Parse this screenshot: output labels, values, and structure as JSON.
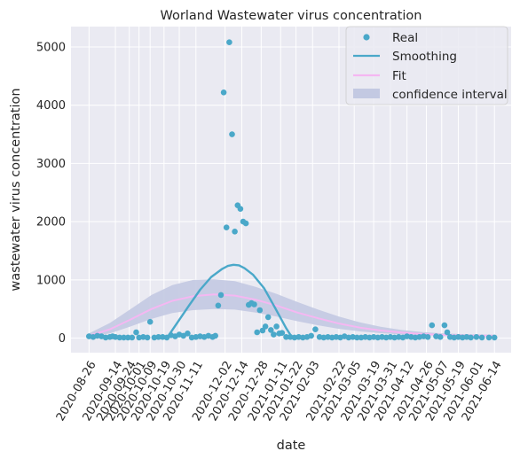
{
  "chart_data": {
    "type": "scatter",
    "title": "Worland Wastewater virus concentration",
    "xlabel": "date",
    "ylabel": "wastewater virus concentration",
    "xlim": [
      "2020-08-13",
      "2021-06-26"
    ],
    "ylim": [
      -250,
      5350
    ],
    "yticks": [
      0,
      1000,
      2000,
      3000,
      4000,
      5000
    ],
    "xticks": [
      "2020-08-26",
      "2020-09-14",
      "2020-09-24",
      "2020-10-01",
      "2020-10-09",
      "2020-10-19",
      "2020-10-30",
      "2020-11-11",
      "2020-12-02",
      "2020-12-14",
      "2020-12-28",
      "2021-01-11",
      "2021-01-22",
      "2021-02-03",
      "2021-02-22",
      "2021-03-05",
      "2021-03-19",
      "2021-03-31",
      "2021-04-12",
      "2021-04-26",
      "2021-05-07",
      "2021-05-19",
      "2021-06-01",
      "2021-06-14"
    ],
    "grid": true,
    "legend_position": "top-right",
    "colors": {
      "real": "#4aa8c9",
      "smoothing": "#4aa8c9",
      "fit": "#f5b7f2",
      "ci": "#c3c9e2",
      "plot_bg": "#eaeaf2",
      "grid": "#ffffff"
    },
    "series": [
      {
        "name": "Real",
        "kind": "scatter",
        "points": [
          [
            "2020-08-26",
            30
          ],
          [
            "2020-08-29",
            20
          ],
          [
            "2020-09-01",
            40
          ],
          [
            "2020-09-04",
            30
          ],
          [
            "2020-09-07",
            10
          ],
          [
            "2020-09-10",
            20
          ],
          [
            "2020-09-12",
            30
          ],
          [
            "2020-09-14",
            20
          ],
          [
            "2020-09-17",
            10
          ],
          [
            "2020-09-20",
            10
          ],
          [
            "2020-09-23",
            10
          ],
          [
            "2020-09-26",
            10
          ],
          [
            "2020-09-29",
            100
          ],
          [
            "2020-10-01",
            10
          ],
          [
            "2020-10-04",
            20
          ],
          [
            "2020-10-07",
            10
          ],
          [
            "2020-10-09",
            280
          ],
          [
            "2020-10-12",
            10
          ],
          [
            "2020-10-15",
            20
          ],
          [
            "2020-10-18",
            20
          ],
          [
            "2020-10-21",
            10
          ],
          [
            "2020-10-24",
            50
          ],
          [
            "2020-10-27",
            30
          ],
          [
            "2020-10-30",
            60
          ],
          [
            "2020-11-02",
            40
          ],
          [
            "2020-11-05",
            80
          ],
          [
            "2020-11-08",
            10
          ],
          [
            "2020-11-11",
            20
          ],
          [
            "2020-11-14",
            30
          ],
          [
            "2020-11-17",
            20
          ],
          [
            "2020-11-20",
            40
          ],
          [
            "2020-11-23",
            20
          ],
          [
            "2020-11-25",
            40
          ],
          [
            "2020-11-27",
            560
          ],
          [
            "2020-11-29",
            740
          ],
          [
            "2020-12-01",
            4220
          ],
          [
            "2020-12-03",
            1900
          ],
          [
            "2020-12-05",
            5080
          ],
          [
            "2020-12-07",
            3500
          ],
          [
            "2020-12-09",
            1830
          ],
          [
            "2020-12-11",
            2280
          ],
          [
            "2020-12-13",
            2220
          ],
          [
            "2020-12-15",
            2000
          ],
          [
            "2020-12-17",
            1970
          ],
          [
            "2020-12-19",
            570
          ],
          [
            "2020-12-21",
            600
          ],
          [
            "2020-12-23",
            580
          ],
          [
            "2020-12-25",
            100
          ],
          [
            "2020-12-27",
            480
          ],
          [
            "2020-12-29",
            130
          ],
          [
            "2020-12-31",
            200
          ],
          [
            "2021-01-02",
            360
          ],
          [
            "2021-01-04",
            140
          ],
          [
            "2021-01-06",
            60
          ],
          [
            "2021-01-08",
            200
          ],
          [
            "2021-01-10",
            80
          ],
          [
            "2021-01-12",
            90
          ],
          [
            "2021-01-15",
            20
          ],
          [
            "2021-01-18",
            20
          ],
          [
            "2021-01-21",
            10
          ],
          [
            "2021-01-24",
            20
          ],
          [
            "2021-01-27",
            10
          ],
          [
            "2021-01-30",
            20
          ],
          [
            "2021-02-02",
            40
          ],
          [
            "2021-02-05",
            150
          ],
          [
            "2021-02-08",
            20
          ],
          [
            "2021-02-11",
            10
          ],
          [
            "2021-02-14",
            20
          ],
          [
            "2021-02-17",
            10
          ],
          [
            "2021-02-20",
            20
          ],
          [
            "2021-02-23",
            10
          ],
          [
            "2021-02-26",
            30
          ],
          [
            "2021-03-01",
            10
          ],
          [
            "2021-03-04",
            20
          ],
          [
            "2021-03-07",
            10
          ],
          [
            "2021-03-10",
            10
          ],
          [
            "2021-03-13",
            20
          ],
          [
            "2021-03-16",
            10
          ],
          [
            "2021-03-19",
            20
          ],
          [
            "2021-03-22",
            10
          ],
          [
            "2021-03-25",
            20
          ],
          [
            "2021-03-28",
            10
          ],
          [
            "2021-03-31",
            20
          ],
          [
            "2021-04-03",
            10
          ],
          [
            "2021-04-06",
            20
          ],
          [
            "2021-04-09",
            10
          ],
          [
            "2021-04-12",
            30
          ],
          [
            "2021-04-15",
            20
          ],
          [
            "2021-04-18",
            10
          ],
          [
            "2021-04-21",
            20
          ],
          [
            "2021-04-24",
            30
          ],
          [
            "2021-04-27",
            20
          ],
          [
            "2021-04-30",
            220
          ],
          [
            "2021-05-03",
            30
          ],
          [
            "2021-05-06",
            20
          ],
          [
            "2021-05-09",
            220
          ],
          [
            "2021-05-11",
            100
          ],
          [
            "2021-05-13",
            20
          ],
          [
            "2021-05-16",
            10
          ],
          [
            "2021-05-19",
            20
          ],
          [
            "2021-05-22",
            10
          ],
          [
            "2021-05-25",
            20
          ],
          [
            "2021-05-28",
            10
          ],
          [
            "2021-06-01",
            20
          ],
          [
            "2021-06-05",
            10
          ],
          [
            "2021-06-10",
            10
          ],
          [
            "2021-06-14",
            10
          ]
        ]
      },
      {
        "name": "Smoothing",
        "kind": "line",
        "points": [
          [
            "2020-10-21",
            0
          ],
          [
            "2020-10-29",
            280
          ],
          [
            "2020-11-06",
            560
          ],
          [
            "2020-11-14",
            830
          ],
          [
            "2020-11-22",
            1050
          ],
          [
            "2020-11-30",
            1190
          ],
          [
            "2020-12-04",
            1240
          ],
          [
            "2020-12-08",
            1260
          ],
          [
            "2020-12-12",
            1250
          ],
          [
            "2020-12-16",
            1200
          ],
          [
            "2020-12-22",
            1090
          ],
          [
            "2020-12-30",
            860
          ],
          [
            "2021-01-07",
            520
          ],
          [
            "2021-01-15",
            170
          ],
          [
            "2021-01-19",
            20
          ],
          [
            "2021-01-22",
            0
          ]
        ]
      },
      {
        "name": "Fit",
        "kind": "line",
        "points": [
          [
            "2020-08-26",
            40
          ],
          [
            "2020-09-10",
            150
          ],
          [
            "2020-09-25",
            320
          ],
          [
            "2020-10-10",
            500
          ],
          [
            "2020-10-25",
            640
          ],
          [
            "2020-11-09",
            720
          ],
          [
            "2020-11-24",
            750
          ],
          [
            "2020-12-09",
            730
          ],
          [
            "2020-12-24",
            660
          ],
          [
            "2021-01-08",
            560
          ],
          [
            "2021-01-23",
            440
          ],
          [
            "2021-02-07",
            340
          ],
          [
            "2021-02-22",
            250
          ],
          [
            "2021-03-09",
            180
          ],
          [
            "2021-03-24",
            130
          ],
          [
            "2021-04-08",
            95
          ],
          [
            "2021-04-23",
            70
          ],
          [
            "2021-05-08",
            55
          ],
          [
            "2021-05-23",
            45
          ],
          [
            "2021-06-14",
            40
          ]
        ]
      },
      {
        "name": "confidence interval",
        "kind": "band",
        "points": [
          [
            "2020-08-26",
            20,
            80
          ],
          [
            "2020-09-10",
            80,
            260
          ],
          [
            "2020-09-25",
            200,
            500
          ],
          [
            "2020-10-10",
            330,
            740
          ],
          [
            "2020-10-25",
            430,
            910
          ],
          [
            "2020-11-09",
            480,
            1000
          ],
          [
            "2020-11-24",
            500,
            1010
          ],
          [
            "2020-12-09",
            490,
            980
          ],
          [
            "2020-12-24",
            440,
            880
          ],
          [
            "2021-01-08",
            370,
            760
          ],
          [
            "2021-01-23",
            290,
            620
          ],
          [
            "2021-02-07",
            220,
            490
          ],
          [
            "2021-02-22",
            160,
            370
          ],
          [
            "2021-03-09",
            115,
            270
          ],
          [
            "2021-03-24",
            85,
            195
          ],
          [
            "2021-04-08",
            62,
            140
          ],
          [
            "2021-04-23",
            48,
            105
          ],
          [
            "2021-05-08",
            38,
            82
          ],
          [
            "2021-05-23",
            32,
            68
          ],
          [
            "2021-06-14",
            28,
            58
          ]
        ]
      }
    ]
  }
}
